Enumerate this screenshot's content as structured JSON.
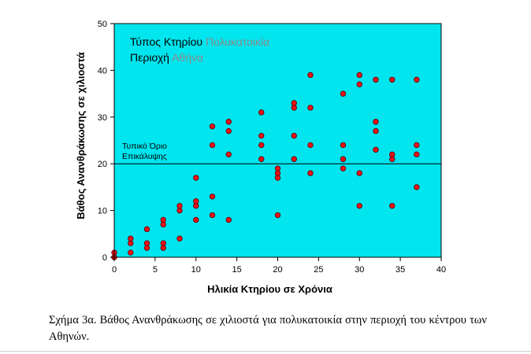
{
  "chart_data": {
    "type": "scatter",
    "legend_lines": [
      {
        "label": "Τύπος Κτηρίου",
        "value": "Πολυκατοικία"
      },
      {
        "label": "Περιοχή",
        "value": "Αθήνα"
      }
    ],
    "xlabel": "Ηλικία Κτηρίου σε Χρόνια",
    "ylabel": "Βάθος Ανανθράκωσης σε χιλιοστά",
    "xlim": [
      0,
      40
    ],
    "ylim": [
      0,
      50
    ],
    "xticks": [
      0,
      5,
      10,
      15,
      20,
      25,
      30,
      35,
      40
    ],
    "yticks": [
      0,
      10,
      20,
      30,
      40,
      50
    ],
    "reference_line": {
      "y": 20,
      "label_lines": [
        "Τυπικό Όριο",
        "Επικάλυψης"
      ]
    },
    "colors": {
      "plot_background": "#00e5ee",
      "marker_fill": "#e8101a",
      "legend_value": "#8a8a8a"
    },
    "points": [
      {
        "x": 0,
        "y": 0
      },
      {
        "x": 0,
        "y": 1
      },
      {
        "x": 2,
        "y": 1
      },
      {
        "x": 2,
        "y": 3
      },
      {
        "x": 2,
        "y": 4
      },
      {
        "x": 4,
        "y": 2
      },
      {
        "x": 4,
        "y": 3
      },
      {
        "x": 4,
        "y": 6
      },
      {
        "x": 6,
        "y": 2
      },
      {
        "x": 6,
        "y": 3
      },
      {
        "x": 6,
        "y": 7
      },
      {
        "x": 6,
        "y": 8
      },
      {
        "x": 8,
        "y": 4
      },
      {
        "x": 8,
        "y": 10
      },
      {
        "x": 8,
        "y": 11
      },
      {
        "x": 10,
        "y": 8
      },
      {
        "x": 10,
        "y": 11
      },
      {
        "x": 10,
        "y": 12
      },
      {
        "x": 10,
        "y": 17
      },
      {
        "x": 12,
        "y": 9
      },
      {
        "x": 12,
        "y": 13
      },
      {
        "x": 12,
        "y": 24
      },
      {
        "x": 12,
        "y": 28
      },
      {
        "x": 14,
        "y": 8
      },
      {
        "x": 14,
        "y": 22
      },
      {
        "x": 14,
        "y": 27
      },
      {
        "x": 14,
        "y": 29
      },
      {
        "x": 18,
        "y": 21
      },
      {
        "x": 18,
        "y": 24
      },
      {
        "x": 18,
        "y": 26
      },
      {
        "x": 18,
        "y": 31
      },
      {
        "x": 20,
        "y": 9
      },
      {
        "x": 20,
        "y": 17
      },
      {
        "x": 20,
        "y": 18
      },
      {
        "x": 20,
        "y": 19
      },
      {
        "x": 22,
        "y": 21
      },
      {
        "x": 22,
        "y": 26
      },
      {
        "x": 22,
        "y": 32
      },
      {
        "x": 22,
        "y": 33
      },
      {
        "x": 24,
        "y": 18
      },
      {
        "x": 24,
        "y": 24
      },
      {
        "x": 24,
        "y": 32
      },
      {
        "x": 24,
        "y": 39
      },
      {
        "x": 28,
        "y": 19
      },
      {
        "x": 28,
        "y": 21
      },
      {
        "x": 28,
        "y": 24
      },
      {
        "x": 28,
        "y": 35
      },
      {
        "x": 30,
        "y": 11
      },
      {
        "x": 30,
        "y": 18
      },
      {
        "x": 30,
        "y": 37
      },
      {
        "x": 30,
        "y": 39
      },
      {
        "x": 32,
        "y": 23
      },
      {
        "x": 32,
        "y": 27
      },
      {
        "x": 32,
        "y": 29
      },
      {
        "x": 32,
        "y": 38
      },
      {
        "x": 34,
        "y": 11
      },
      {
        "x": 34,
        "y": 21
      },
      {
        "x": 34,
        "y": 22
      },
      {
        "x": 34,
        "y": 38
      },
      {
        "x": 37,
        "y": 15
      },
      {
        "x": 37,
        "y": 22
      },
      {
        "x": 37,
        "y": 24
      },
      {
        "x": 37,
        "y": 38
      }
    ]
  },
  "caption": "Σχήμα 3α. Βάθος Ανανθράκωσης σε χιλιοστά για πολυκατοικία στην περιοχή του κέντρου των Αθηνών."
}
